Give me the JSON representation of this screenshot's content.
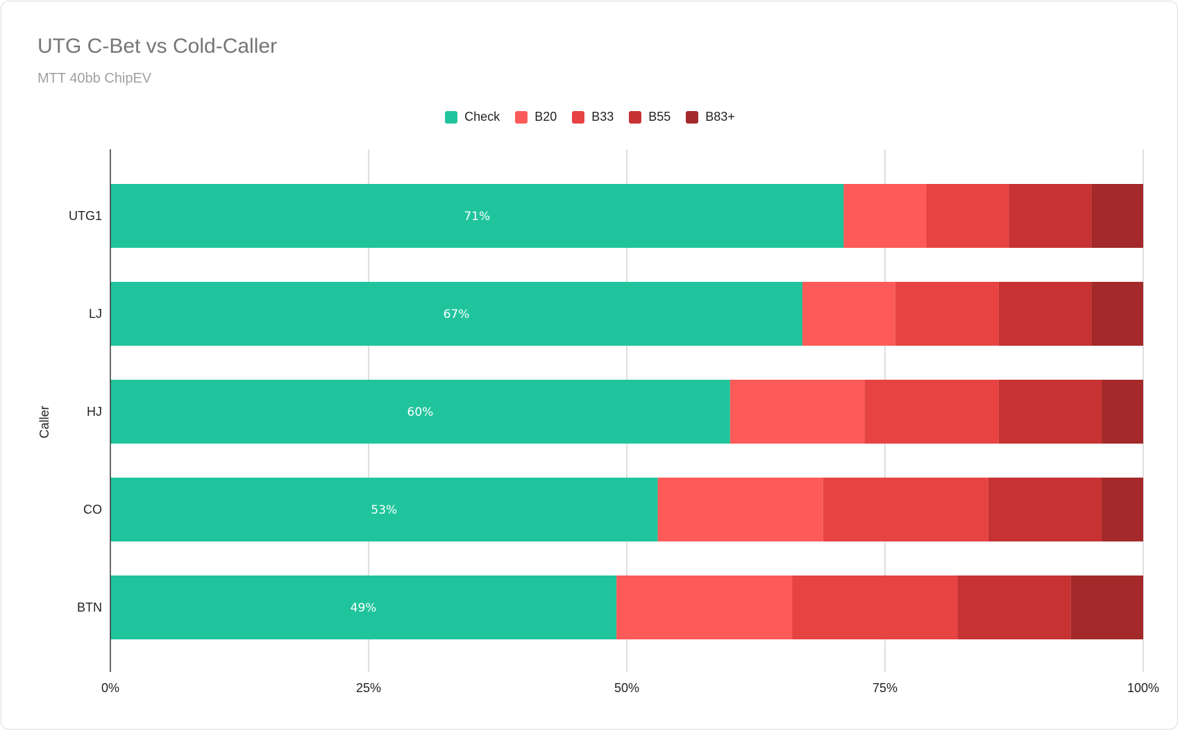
{
  "chart_data": {
    "type": "bar",
    "orientation": "horizontal",
    "stacked": true,
    "title": "UTG C-Bet vs Cold-Caller",
    "subtitle": "MTT 40bb ChipEV",
    "ylabel": "Caller",
    "xlabel": "",
    "categories": [
      "UTG1",
      "LJ",
      "HJ",
      "CO",
      "BTN"
    ],
    "x_ticks": [
      "0%",
      "25%",
      "50%",
      "75%",
      "100%"
    ],
    "xlim": [
      0,
      100
    ],
    "legend_position": "top-center",
    "grid": true,
    "series": [
      {
        "name": "Check",
        "color": "#20c49c",
        "values": [
          71,
          67,
          60,
          53,
          49
        ],
        "labels": [
          "71%",
          "67%",
          "60%",
          "53%",
          "49%"
        ]
      },
      {
        "name": "B20",
        "color": "#fe5a5a",
        "values": [
          8,
          9,
          13,
          16,
          17
        ]
      },
      {
        "name": "B33",
        "color": "#e84343",
        "values": [
          8,
          10,
          13,
          16,
          16
        ]
      },
      {
        "name": "B55",
        "color": "#c73232",
        "values": [
          8,
          9,
          10,
          11,
          11
        ]
      },
      {
        "name": "B83+",
        "color": "#a3292a",
        "values": [
          5,
          5,
          4,
          4,
          7
        ]
      }
    ]
  }
}
